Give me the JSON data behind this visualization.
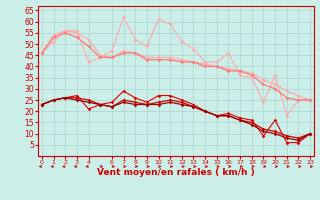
{
  "background_color": "#cceee8",
  "grid_color": "#aad4ce",
  "xlabel": "Vent moyen/en rafales ( km/h )",
  "xlabel_color": "#cc0000",
  "xlabel_fontsize": 6.5,
  "tick_color": "#cc0000",
  "xlim": [
    -0.3,
    23.3
  ],
  "ylim": [
    0,
    67
  ],
  "yticks": [
    5,
    10,
    15,
    20,
    25,
    30,
    35,
    40,
    45,
    50,
    55,
    60,
    65
  ],
  "xticks": [
    0,
    1,
    2,
    3,
    4,
    6,
    7,
    8,
    9,
    10,
    11,
    12,
    13,
    14,
    15,
    16,
    17,
    18,
    19,
    20,
    21,
    22,
    23
  ],
  "series": [
    {
      "x": [
        0,
        1,
        2,
        3,
        4,
        5,
        6,
        7,
        8,
        9,
        10,
        11,
        12,
        13,
        14,
        15,
        16,
        17,
        18,
        19,
        20,
        21,
        22,
        23
      ],
      "y": [
        46,
        51,
        56,
        56,
        42,
        44,
        47,
        62,
        52,
        49,
        61,
        59,
        51,
        48,
        42,
        42,
        46,
        36,
        35,
        24,
        36,
        18,
        25,
        25
      ],
      "color": "#ffaaaa",
      "lw": 0.8,
      "marker": "D",
      "ms": 1.8
    },
    {
      "x": [
        0,
        1,
        2,
        3,
        4,
        5,
        6,
        7,
        8,
        9,
        10,
        11,
        12,
        13,
        14,
        15,
        16,
        17,
        18,
        19,
        20,
        21,
        22,
        23
      ],
      "y": [
        46,
        54,
        56,
        55,
        52,
        45,
        44,
        47,
        46,
        44,
        44,
        44,
        43,
        42,
        41,
        40,
        39,
        38,
        37,
        34,
        32,
        29,
        27,
        25
      ],
      "color": "#ffaaaa",
      "lw": 0.9,
      "marker": "D",
      "ms": 1.8
    },
    {
      "x": [
        0,
        1,
        2,
        3,
        4,
        5,
        6,
        7,
        8,
        9,
        10,
        11,
        12,
        13,
        14,
        15,
        16,
        17,
        18,
        19,
        20,
        21,
        22,
        23
      ],
      "y": [
        46,
        53,
        55,
        53,
        49,
        44,
        44,
        46,
        46,
        43,
        43,
        43,
        42,
        42,
        40,
        40,
        38,
        38,
        36,
        32,
        30,
        26,
        25,
        25
      ],
      "color": "#ff7777",
      "lw": 0.9,
      "marker": "D",
      "ms": 1.8
    },
    {
      "x": [
        0,
        1,
        2,
        3,
        4,
        5,
        6,
        7,
        8,
        9,
        10,
        11,
        12,
        13,
        14,
        15,
        16,
        17,
        18,
        19,
        20,
        21,
        22,
        23
      ],
      "y": [
        23,
        25,
        26,
        27,
        21,
        23,
        24,
        29,
        26,
        24,
        27,
        27,
        25,
        23,
        20,
        18,
        19,
        17,
        16,
        9,
        16,
        6,
        6,
        10
      ],
      "color": "#dd0000",
      "lw": 0.8,
      "marker": "D",
      "ms": 1.8
    },
    {
      "x": [
        0,
        1,
        2,
        3,
        4,
        5,
        6,
        7,
        8,
        9,
        10,
        11,
        12,
        13,
        14,
        15,
        16,
        17,
        18,
        19,
        20,
        21,
        22,
        23
      ],
      "y": [
        23,
        25,
        26,
        26,
        25,
        23,
        22,
        25,
        24,
        23,
        24,
        25,
        24,
        22,
        20,
        18,
        18,
        16,
        15,
        12,
        11,
        9,
        8,
        10
      ],
      "color": "#cc0000",
      "lw": 0.9,
      "marker": "D",
      "ms": 1.8
    },
    {
      "x": [
        0,
        1,
        2,
        3,
        4,
        5,
        6,
        7,
        8,
        9,
        10,
        11,
        12,
        13,
        14,
        15,
        16,
        17,
        18,
        19,
        20,
        21,
        22,
        23
      ],
      "y": [
        23,
        25,
        26,
        25,
        24,
        23,
        22,
        24,
        23,
        23,
        23,
        24,
        23,
        22,
        20,
        18,
        18,
        16,
        14,
        11,
        10,
        8,
        7,
        10
      ],
      "color": "#990000",
      "lw": 0.9,
      "marker": "D",
      "ms": 1.8
    }
  ],
  "arrow_xs_left": [
    0,
    1,
    2,
    3,
    4
  ],
  "arrow_xs_right": [
    5,
    6,
    7,
    8,
    9,
    10,
    11,
    12,
    13,
    14,
    15,
    16,
    17,
    18,
    19,
    20,
    21,
    22,
    23
  ],
  "wind_arrow_color": "#cc0000"
}
